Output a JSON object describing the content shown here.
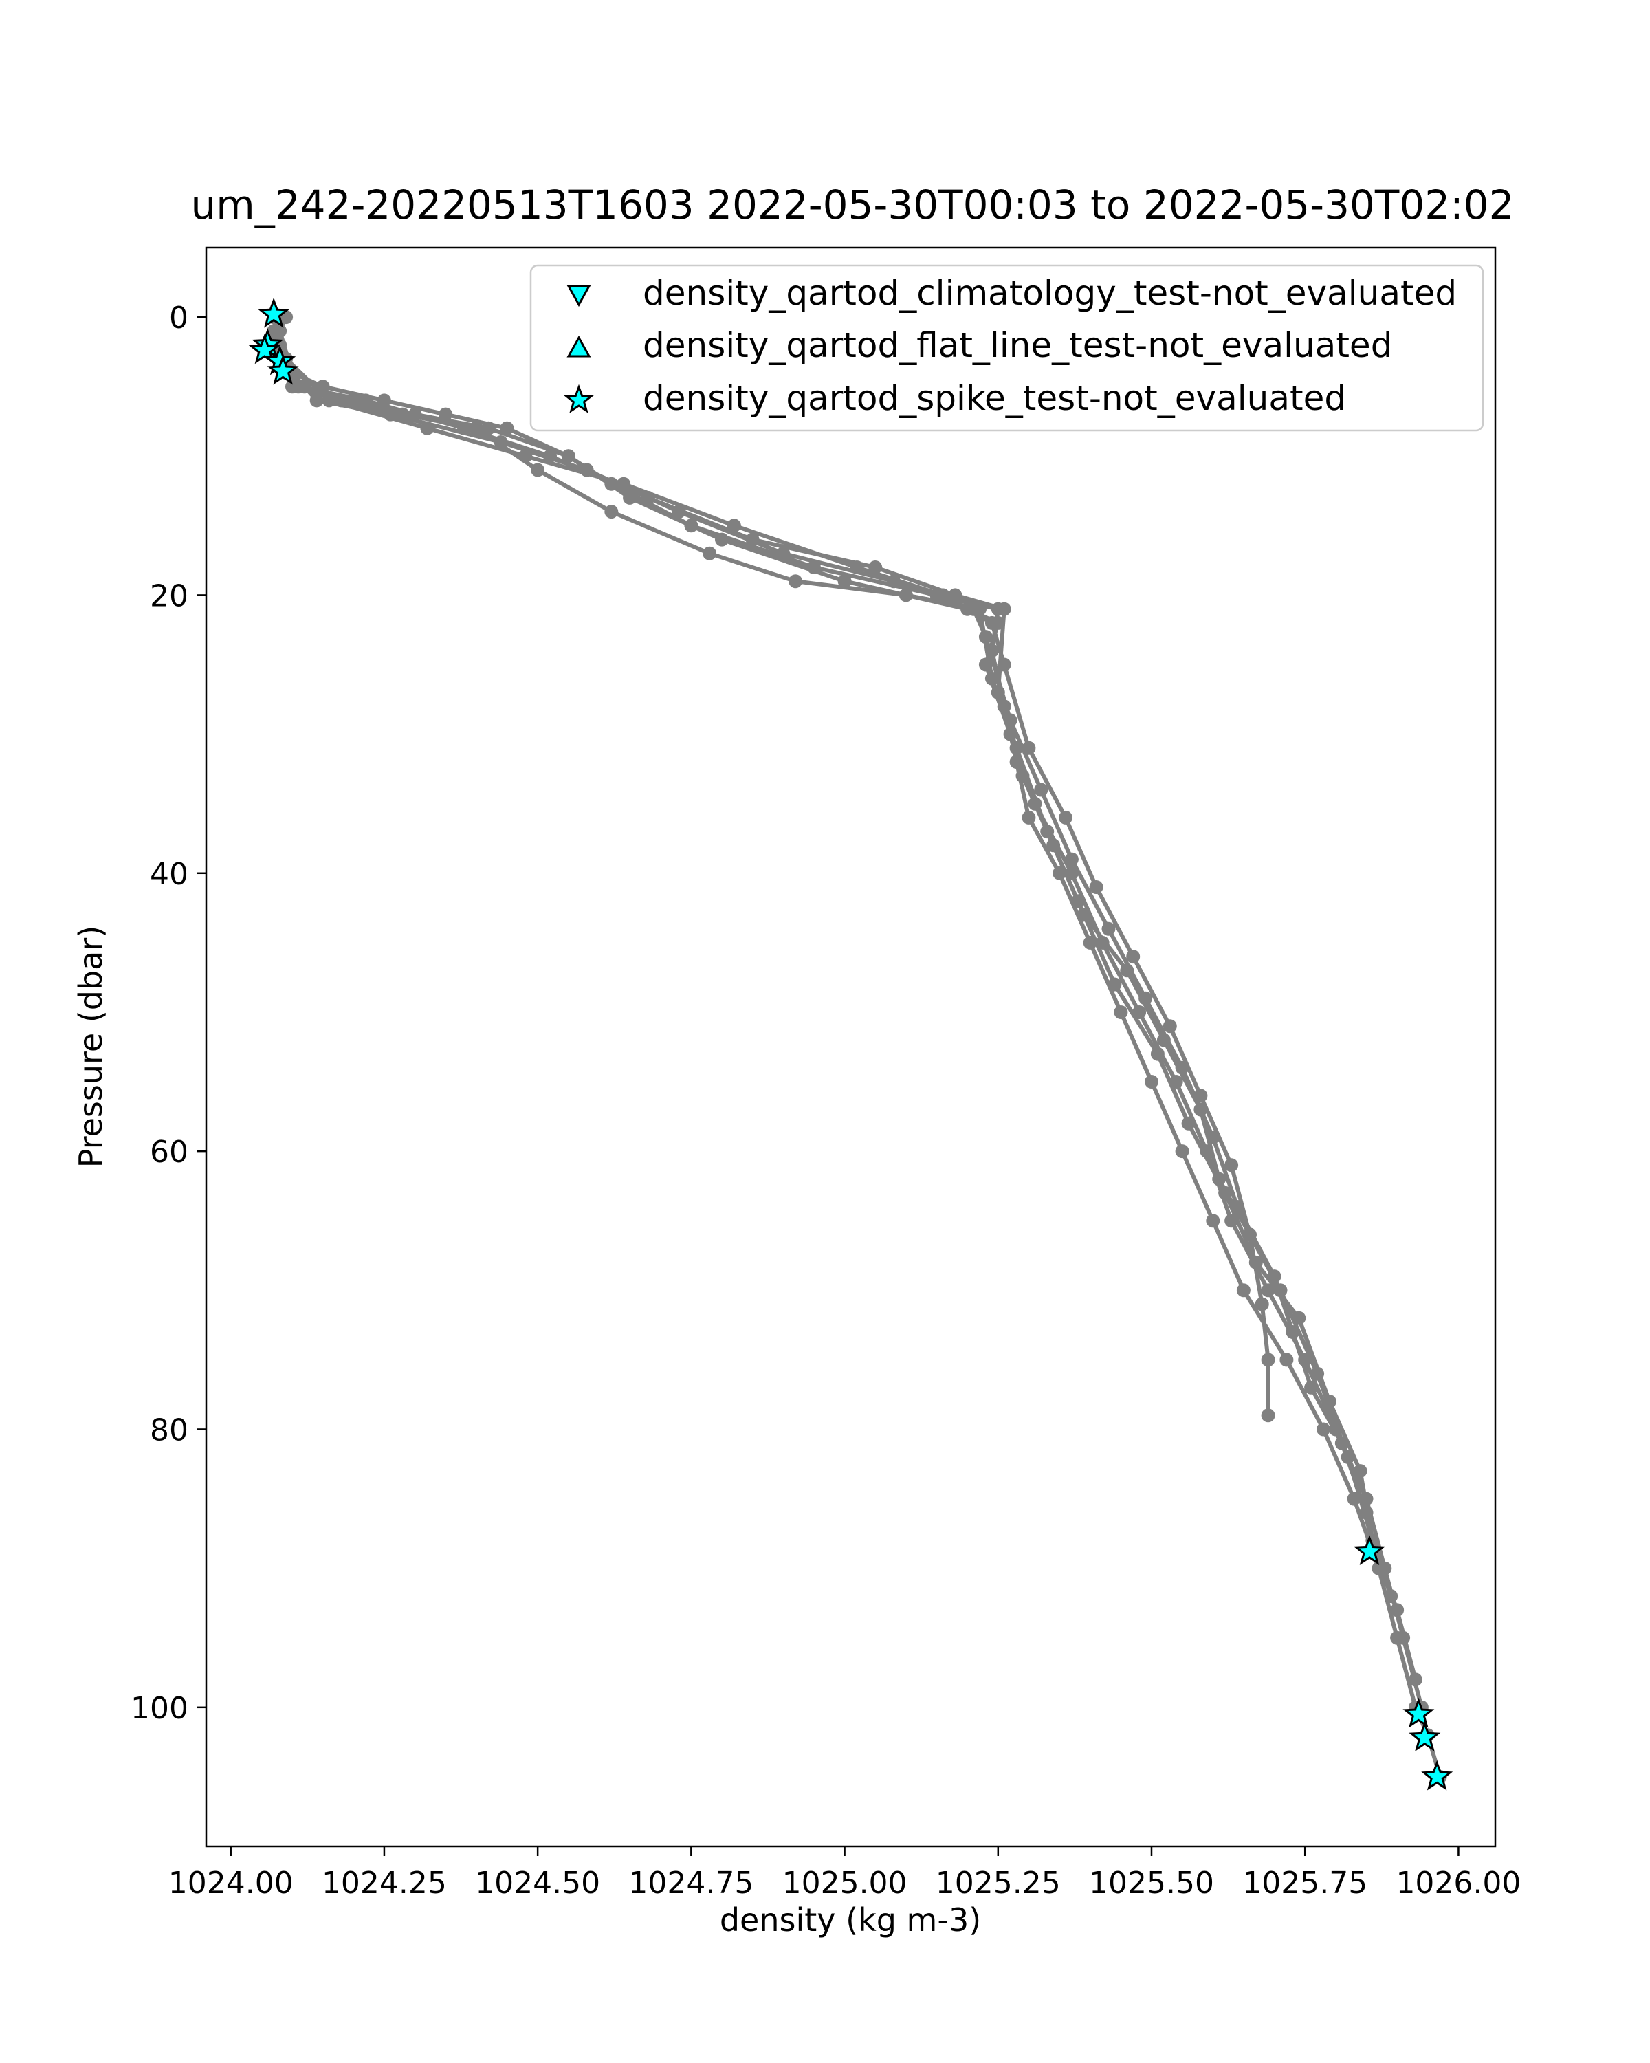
{
  "chart_data": {
    "type": "line",
    "title": "um_242-20220513T1603 2022-05-30T00:03 to 2022-05-30T02:02",
    "xlabel": "density (kg m-3)",
    "ylabel": "Pressure (dbar)",
    "xlim": [
      1023.96,
      1026.06
    ],
    "ylim": [
      110,
      -5
    ],
    "y_inverted": true,
    "grid": false,
    "legend_position": "top-right",
    "xticks": [
      "1024.00",
      "1024.25",
      "1024.50",
      "1024.75",
      "1025.00",
      "1025.25",
      "1025.50",
      "1025.75",
      "1026.00"
    ],
    "xtick_values": [
      1024.0,
      1024.25,
      1024.5,
      1024.75,
      1025.0,
      1025.25,
      1025.5,
      1025.75,
      1026.0
    ],
    "yticks": [
      "0",
      "20",
      "40",
      "60",
      "80",
      "100"
    ],
    "ytick_values": [
      0,
      20,
      40,
      60,
      80,
      100
    ],
    "profile_color": "#808080",
    "marker_color": "#00ffff",
    "profiles": [
      {
        "x": [
          1024.08,
          1024.07,
          1024.08,
          1024.09,
          1024.1,
          1024.15,
          1024.25,
          1024.35,
          1024.45,
          1024.55,
          1024.62,
          1024.75,
          1024.95,
          1025.15,
          1025.25,
          1025.24,
          1025.26,
          1025.28,
          1025.3,
          1025.35,
          1025.4,
          1025.45,
          1025.5,
          1025.55,
          1025.6,
          1025.65,
          1025.72,
          1025.78,
          1025.83,
          1025.87,
          1025.9,
          1025.93,
          1025.95,
          1025.97
        ],
        "y": [
          0,
          1,
          2,
          3,
          4,
          5,
          6,
          7,
          8,
          10,
          12,
          15,
          18,
          20,
          21,
          24,
          28,
          32,
          36,
          40,
          45,
          50,
          55,
          60,
          65,
          70,
          75,
          80,
          85,
          90,
          95,
          100,
          102,
          105
        ]
      },
      {
        "x": [
          1024.08,
          1024.06,
          1024.09,
          1024.12,
          1024.2,
          1024.3,
          1024.42,
          1024.55,
          1024.65,
          1024.8,
          1025.0,
          1025.2,
          1025.25,
          1025.23,
          1025.27,
          1025.31,
          1025.37,
          1025.42,
          1025.48,
          1025.54,
          1025.59,
          1025.63,
          1025.69,
          1025.75,
          1025.8,
          1025.85,
          1025.88,
          1025.91,
          1025.94
        ],
        "y": [
          0,
          2,
          4,
          5,
          6,
          7,
          8,
          10,
          13,
          16,
          19,
          21,
          22,
          25,
          30,
          35,
          40,
          45,
          50,
          55,
          60,
          65,
          70,
          75,
          80,
          85,
          90,
          95,
          100
        ]
      },
      {
        "x": [
          1024.07,
          1024.08,
          1024.1,
          1024.18,
          1024.28,
          1024.4,
          1024.5,
          1024.62,
          1024.78,
          1024.92,
          1025.1,
          1025.22,
          1025.24,
          1025.28,
          1025.33,
          1025.38,
          1025.44,
          1025.51,
          1025.56,
          1025.62,
          1025.67,
          1025.74,
          1025.79,
          1025.84,
          1025.86,
          1025.89
        ],
        "y": [
          0,
          3,
          5,
          6,
          7,
          8,
          11,
          14,
          17,
          19,
          20,
          21,
          26,
          31,
          37,
          42,
          48,
          53,
          58,
          63,
          68,
          72,
          78,
          83,
          88,
          92
        ]
      },
      {
        "x": [
          1024.09,
          1024.07,
          1024.11,
          1024.22,
          1024.38,
          1024.52,
          1024.68,
          1024.85,
          1025.05,
          1025.18,
          1025.26,
          1025.25,
          1025.29,
          1025.34,
          1025.39,
          1025.46,
          1025.52,
          1025.58,
          1025.61,
          1025.66,
          1025.71,
          1025.77,
          1025.82,
          1025.86,
          1025.9,
          1025.93
        ],
        "y": [
          0,
          2,
          5,
          6,
          8,
          10,
          13,
          16,
          18,
          20,
          21,
          27,
          33,
          38,
          43,
          47,
          52,
          57,
          62,
          66,
          70,
          76,
          82,
          88,
          93,
          98
        ]
      },
      {
        "x": [
          1024.08,
          1024.1,
          1024.14,
          1024.26,
          1024.44,
          1024.58,
          1024.73,
          1024.9,
          1025.08,
          1025.21,
          1025.23,
          1025.27,
          1025.32,
          1025.37,
          1025.43,
          1025.49,
          1025.55,
          1025.6,
          1025.64,
          1025.7,
          1025.73,
          1025.76,
          1025.81,
          1025.85
        ],
        "y": [
          1,
          4,
          6,
          7,
          9,
          11,
          14,
          17,
          19,
          21,
          23,
          29,
          34,
          39,
          44,
          49,
          54,
          59,
          64,
          69,
          73,
          77,
          81,
          86
        ]
      },
      {
        "x": [
          1024.07,
          1024.09,
          1024.16,
          1024.32,
          1024.48,
          1024.64,
          1024.82,
          1025.02,
          1025.16,
          1025.24,
          1025.26,
          1025.3,
          1025.36,
          1025.41,
          1025.47,
          1025.53,
          1025.58,
          1025.63,
          1025.66,
          1025.68,
          1025.69,
          1025.69
        ],
        "y": [
          0,
          3,
          6,
          8,
          10,
          12,
          15,
          18,
          20,
          22,
          25,
          31,
          36,
          41,
          46,
          51,
          56,
          61,
          66,
          71,
          75,
          79
        ]
      }
    ],
    "series": [
      {
        "name": "density_qartod_climatology_test-not_evaluated",
        "marker": "triangle-down",
        "x": [],
        "y": []
      },
      {
        "name": "density_qartod_flat_line_test-not_evaluated",
        "marker": "triangle-up",
        "x": [],
        "y": []
      },
      {
        "name": "density_qartod_spike_test-not_evaluated",
        "marker": "star",
        "x": [
          1024.07,
          1024.06,
          1024.055,
          1024.08,
          1024.085,
          1025.855,
          1025.935,
          1025.945,
          1025.965
        ],
        "y": [
          -0.2,
          2.0,
          2.4,
          3.2,
          3.9,
          88.8,
          100.5,
          102.2,
          105.0
        ]
      }
    ]
  }
}
